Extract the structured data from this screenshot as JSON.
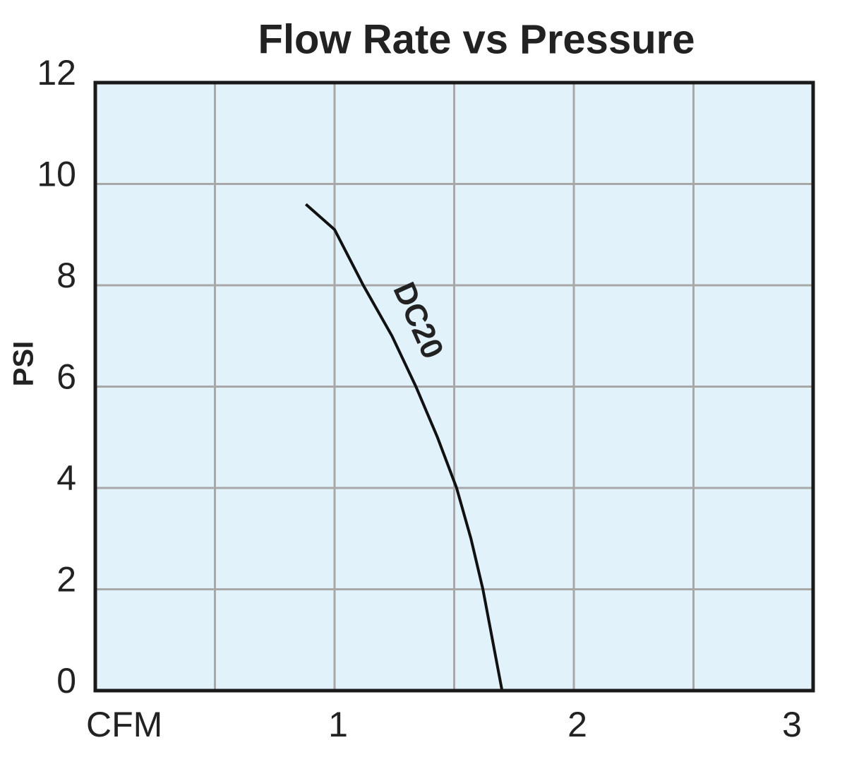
{
  "chart_data": {
    "type": "line",
    "title": "Flow Rate vs Pressure",
    "y_label": "PSI",
    "x": [
      0.88,
      1.0,
      1.12,
      1.24,
      1.34,
      1.43,
      1.51,
      1.57,
      1.62,
      1.66,
      1.7
    ],
    "series": [
      {
        "name": "DC20",
        "color": "#111111",
        "values": [
          9.6,
          9.1,
          8,
          7,
          6,
          5,
          4,
          3,
          2,
          1,
          0
        ]
      }
    ],
    "xlim": [
      0,
      3
    ],
    "ylim": [
      0,
      12
    ],
    "xticks": [
      {
        "value": 0,
        "label": "CFM"
      },
      1,
      2,
      3
    ],
    "xgrid": [
      0.5,
      1,
      1.5,
      2,
      2.5
    ],
    "yticks": [
      0,
      2,
      4,
      6,
      8,
      10,
      12
    ],
    "grid": true,
    "background": "#e1f2fb"
  }
}
